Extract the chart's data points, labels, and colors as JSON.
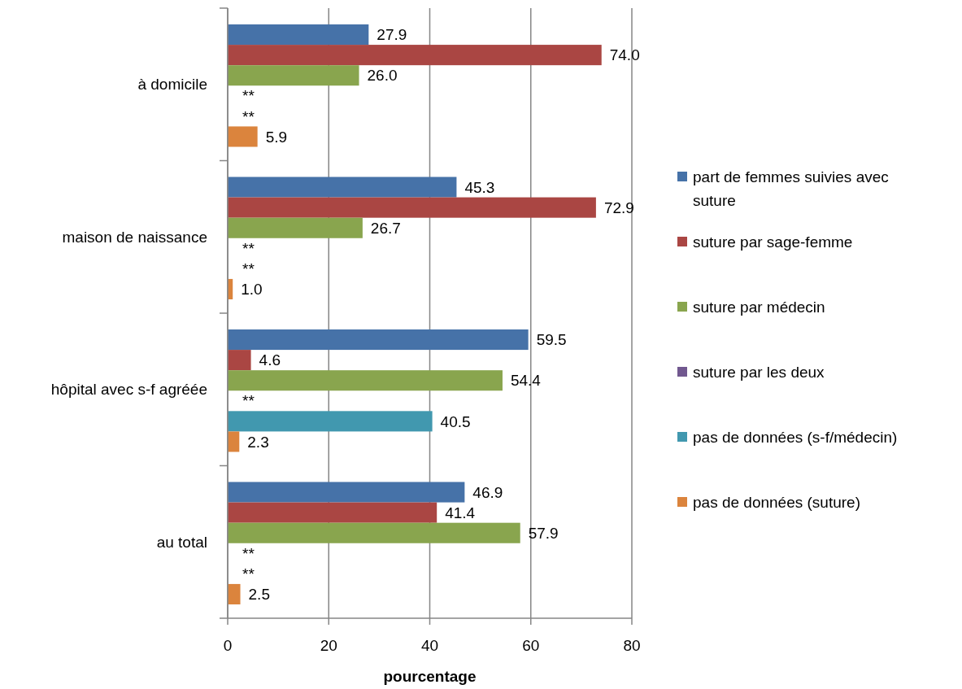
{
  "chart_data": {
    "type": "bar",
    "orientation": "horizontal",
    "xlabel": "pourcentage",
    "categories": [
      "à domicile",
      "maison de naissance",
      "hôpital avec s-f agréée",
      "au total"
    ],
    "series": [
      {
        "name": "part de femmes suivies avec suture",
        "color": "#4672a8",
        "values": [
          27.9,
          45.3,
          59.5,
          46.9
        ],
        "value_labels": [
          "27.9",
          "45.3",
          "59.5",
          "46.9"
        ]
      },
      {
        "name": "suture par sage-femme",
        "color": "#aa4643",
        "values": [
          74.0,
          72.9,
          4.6,
          41.4
        ],
        "value_labels": [
          "74.0",
          "72.9",
          "4.6",
          "41.4"
        ]
      },
      {
        "name": "suture par médecin",
        "color": "#89a54e",
        "values": [
          26.0,
          26.7,
          54.4,
          57.9
        ],
        "value_labels": [
          "26.0",
          "26.7",
          "54.4",
          "57.9"
        ]
      },
      {
        "name": "suture par les deux",
        "color": "#71588f",
        "values": [
          null,
          null,
          null,
          null
        ],
        "value_labels": [
          "**",
          "**",
          "**",
          "**"
        ]
      },
      {
        "name": "pas de données (s-f/médecin)",
        "color": "#4198af",
        "values": [
          null,
          null,
          40.5,
          null
        ],
        "value_labels": [
          "**",
          "**",
          "40.5",
          "**"
        ]
      },
      {
        "name": "pas de données (suture)",
        "color": "#db843d",
        "values": [
          5.9,
          1.0,
          2.3,
          2.5
        ],
        "value_labels": [
          "5.9",
          "1.0",
          "2.3",
          "2.5"
        ]
      }
    ],
    "xlim": [
      0,
      80
    ],
    "xticks": [
      0,
      20,
      40,
      60,
      80
    ],
    "grid": "x",
    "legend": "right"
  }
}
